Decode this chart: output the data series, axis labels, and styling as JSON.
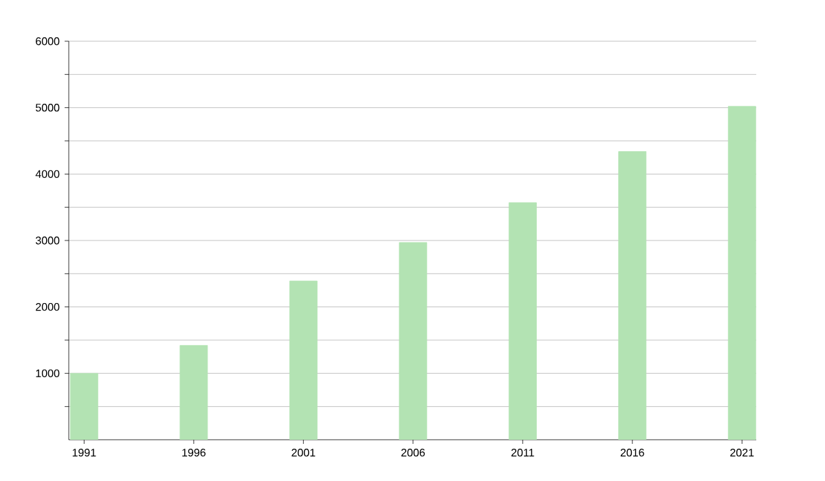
{
  "chart_data": {
    "type": "bar",
    "categories": [
      "1991",
      "1996",
      "2001",
      "2006",
      "2011",
      "2016",
      "2021"
    ],
    "values": [
      1000,
      1420,
      2390,
      2970,
      3570,
      4340,
      5020
    ],
    "color": "#b3e3b3",
    "ylim": [
      0,
      6000
    ],
    "yticks": [
      {
        "value": 500,
        "label": null
      },
      1000,
      {
        "value": 1500,
        "label": null
      },
      2000,
      {
        "value": 2500,
        "label": null
      },
      3000,
      {
        "value": 3500,
        "label": null
      },
      4000,
      {
        "value": 4500,
        "label": null
      },
      5000,
      {
        "value": 5500,
        "label": null
      },
      6000
    ],
    "grid": "y"
  }
}
